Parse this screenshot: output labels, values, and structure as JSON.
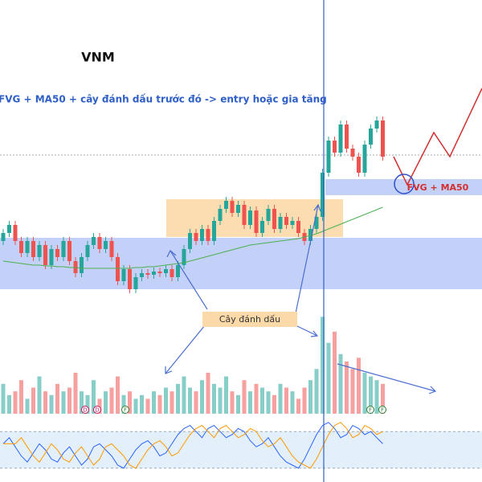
{
  "chart_data": {
    "type": "candlestick",
    "title": "VNM",
    "subtitle": "FVG + MA50 + cây đánh dấu trước đó -> entry hoặc gia tăng",
    "annotations": [
      "FVG + MA50",
      "Cây đánh dấu"
    ],
    "markers": [
      "D",
      "D",
      "F",
      "F",
      "F"
    ],
    "ylim": [
      0,
      600
    ],
    "up_color": "#26a69a",
    "down_color": "#ef5350",
    "open": [
      300,
      310,
      320,
      300,
      285,
      300,
      280,
      295,
      270,
      290,
      280,
      300,
      275,
      260,
      280,
      295,
      305,
      290,
      300,
      280,
      250,
      265,
      240,
      255,
      260,
      258,
      262,
      260,
      265,
      255,
      270,
      290,
      310,
      300,
      315,
      300,
      325,
      340,
      350,
      335,
      345,
      320,
      338,
      310,
      325,
      340,
      315,
      330,
      320,
      325,
      310,
      300,
      315,
      330,
      385,
      425,
      410,
      445,
      415,
      405,
      385,
      420,
      440,
      450
    ],
    "high": [
      315,
      325,
      325,
      305,
      305,
      305,
      300,
      300,
      295,
      295,
      305,
      305,
      280,
      285,
      300,
      310,
      310,
      305,
      305,
      285,
      270,
      270,
      260,
      265,
      265,
      267,
      267,
      270,
      270,
      275,
      295,
      315,
      315,
      320,
      320,
      330,
      345,
      355,
      355,
      350,
      350,
      343,
      343,
      330,
      345,
      345,
      335,
      335,
      330,
      330,
      315,
      320,
      335,
      390,
      430,
      430,
      450,
      450,
      420,
      410,
      425,
      445,
      455,
      455
    ],
    "low": [
      295,
      305,
      295,
      280,
      280,
      275,
      275,
      265,
      265,
      275,
      275,
      270,
      255,
      255,
      275,
      290,
      285,
      285,
      275,
      245,
      245,
      235,
      235,
      250,
      253,
      253,
      255,
      255,
      250,
      250,
      265,
      285,
      295,
      295,
      295,
      295,
      320,
      335,
      330,
      330,
      315,
      315,
      305,
      305,
      320,
      310,
      310,
      315,
      315,
      305,
      295,
      295,
      310,
      325,
      380,
      405,
      405,
      410,
      400,
      380,
      380,
      415,
      435,
      400
    ],
    "close": [
      310,
      320,
      300,
      285,
      300,
      280,
      295,
      270,
      290,
      280,
      300,
      275,
      260,
      280,
      295,
      305,
      290,
      300,
      280,
      250,
      265,
      240,
      255,
      260,
      258,
      262,
      260,
      265,
      255,
      270,
      290,
      310,
      300,
      315,
      300,
      325,
      340,
      350,
      335,
      345,
      320,
      338,
      310,
      325,
      340,
      315,
      330,
      320,
      325,
      310,
      300,
      315,
      330,
      385,
      425,
      410,
      445,
      415,
      405,
      385,
      420,
      440,
      450,
      405
    ],
    "ma50": [
      275,
      274,
      273,
      272,
      271,
      270,
      270,
      269,
      269,
      268,
      268,
      267,
      267,
      266,
      266,
      266,
      266,
      266,
      266,
      266,
      266,
      266,
      267,
      267,
      268,
      268,
      269,
      270,
      271,
      272,
      273,
      275,
      277,
      279,
      281,
      283,
      285,
      287,
      289,
      291,
      293,
      295,
      296,
      297,
      298,
      299,
      300,
      301,
      302,
      303,
      305,
      307,
      309,
      312,
      315,
      318,
      321,
      324,
      327,
      330,
      333,
      336,
      339,
      342
    ],
    "ma_color": "#4caf50",
    "volume": [
      40,
      25,
      30,
      45,
      20,
      35,
      50,
      30,
      25,
      40,
      30,
      35,
      55,
      30,
      25,
      45,
      20,
      30,
      35,
      50,
      25,
      30,
      20,
      25,
      20,
      30,
      25,
      35,
      30,
      40,
      50,
      35,
      30,
      45,
      55,
      40,
      35,
      50,
      30,
      25,
      45,
      30,
      40,
      35,
      30,
      25,
      40,
      35,
      30,
      20,
      35,
      45,
      60,
      130,
      95,
      110,
      80,
      70,
      60,
      75,
      55,
      50,
      45,
      40
    ],
    "volume_lim": [
      0,
      140
    ],
    "stoch_k": [
      60,
      70,
      55,
      40,
      30,
      45,
      60,
      50,
      35,
      30,
      45,
      55,
      40,
      25,
      35,
      55,
      60,
      50,
      40,
      25,
      20,
      35,
      50,
      60,
      65,
      55,
      40,
      45,
      60,
      75,
      85,
      90,
      80,
      70,
      85,
      90,
      80,
      70,
      75,
      85,
      80,
      65,
      55,
      60,
      70,
      55,
      40,
      30,
      25,
      20,
      35,
      55,
      75,
      90,
      95,
      85,
      70,
      75,
      90,
      85,
      75,
      80,
      70,
      60
    ],
    "stoch_d": [
      60,
      60,
      60,
      70,
      55,
      40,
      30,
      45,
      60,
      50,
      35,
      30,
      45,
      55,
      40,
      25,
      35,
      55,
      60,
      50,
      40,
      25,
      20,
      35,
      50,
      60,
      65,
      55,
      40,
      45,
      60,
      75,
      85,
      90,
      80,
      70,
      85,
      90,
      80,
      70,
      75,
      85,
      80,
      65,
      55,
      60,
      70,
      55,
      40,
      30,
      25,
      20,
      35,
      55,
      75,
      90,
      95,
      85,
      70,
      75,
      90,
      85,
      75,
      80
    ],
    "stoch_lim": [
      0,
      100
    ],
    "stoch_bands": [
      20,
      80
    ]
  }
}
